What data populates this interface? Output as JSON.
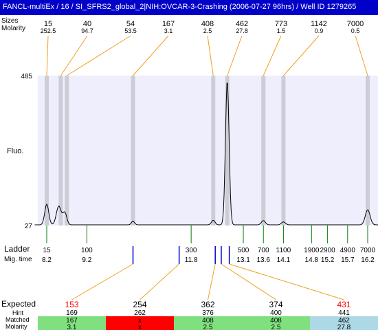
{
  "window": {
    "title": "FANCL-multiEx / 16 / SI_SFRS2_global_2|NIH:OVCAR-3-Crashing (2006-07-27 96hrs) / Well ID 1279265"
  },
  "colors": {
    "title_bar": "#0000c8",
    "plot_background": "#eeeefc",
    "peak_band": "#cdcdd7",
    "ladder_tick": "#008000",
    "sample_tick": "#0000cc",
    "connector": "#f0a020",
    "expected_highlight": "#ff0000",
    "cell_matched": "#80e080",
    "cell_failed": "#ff0000",
    "cell_extra": "#add8e6"
  },
  "labels": {
    "size_row": "Sizes",
    "molarity_row": "Molarity",
    "y_axis": "Fluo.",
    "ladder": "Ladder",
    "mig_time": "Mig. time",
    "expected": "Expected",
    "hint": "Hint",
    "matched": "Matched",
    "molarity": "Molarity"
  },
  "chart_data": {
    "type": "line",
    "title": "",
    "ylabel": "Fluo.",
    "y_ticks": [
      "485",
      "27"
    ],
    "ylim": [
      27,
      485
    ],
    "xlim": [
      7.9,
      16.5
    ],
    "x_quantity": "migration time",
    "peaks_top": [
      {
        "size": "15",
        "molarity": "252.5",
        "time": 8.2
      },
      {
        "size": "40",
        "molarity": "94.7",
        "time": 8.55
      },
      {
        "size": "54",
        "molarity": "53.5",
        "time": 8.7
      },
      {
        "size": "167",
        "molarity": "3.1",
        "time": 10.35
      },
      {
        "size": "408",
        "molarity": "2.5",
        "time": 12.35
      },
      {
        "size": "462",
        "molarity": "27.8",
        "time": 12.7
      },
      {
        "size": "773",
        "molarity": "1.5",
        "time": 13.6
      },
      {
        "size": "1142",
        "molarity": "0.9",
        "time": 14.1
      },
      {
        "size": "7000",
        "molarity": "0.5",
        "time": 16.2
      }
    ],
    "ladder": [
      {
        "size": "15",
        "time": "8.2"
      },
      {
        "size": "100",
        "time": "9.2"
      },
      {
        "size": "300",
        "time": "11.8"
      },
      {
        "size": "500",
        "time": "13.1"
      },
      {
        "size": "700",
        "time": "13.6"
      },
      {
        "size": "1100",
        "time": "14.1"
      },
      {
        "size": "1900",
        "time": "14.8"
      },
      {
        "size": "2900",
        "time": "15.2"
      },
      {
        "size": "4900",
        "time": "15.7"
      },
      {
        "size": "7000",
        "time": "16.2"
      }
    ],
    "trace_baseline": 29,
    "trace_peaks": [
      {
        "t": 8.2,
        "h": 92,
        "w": 0.05
      },
      {
        "t": 8.5,
        "h": 86,
        "w": 0.06
      },
      {
        "t": 8.65,
        "h": 66,
        "w": 0.05
      },
      {
        "t": 10.35,
        "h": 40,
        "w": 0.04
      },
      {
        "t": 12.35,
        "h": 43,
        "w": 0.045
      },
      {
        "t": 12.7,
        "h": 470,
        "w": 0.045
      },
      {
        "t": 13.6,
        "h": 42,
        "w": 0.05
      },
      {
        "t": 14.1,
        "h": 38,
        "w": 0.05
      },
      {
        "t": 16.2,
        "h": 75,
        "w": 0.06
      }
    ],
    "sample_ticks": [
      10.35,
      11.5,
      12.4,
      12.55,
      12.75
    ],
    "fragments": [
      {
        "expected": "153",
        "expected_color": "red",
        "hint": "169",
        "matched": "167",
        "molarity": "3.1",
        "status": "matched",
        "peak_index": 3
      },
      {
        "expected": "254",
        "expected_color": "black",
        "hint": "262",
        "matched": "x",
        "molarity": "x",
        "status": "failed",
        "peak_index": 3
      },
      {
        "expected": "362",
        "expected_color": "black",
        "hint": "376",
        "matched": "408",
        "molarity": "2.5",
        "status": "matched",
        "peak_index": 4
      },
      {
        "expected": "374",
        "expected_color": "black",
        "hint": "400",
        "matched": "408",
        "molarity": "2.5",
        "status": "matched",
        "peak_index": 4
      },
      {
        "expected": "431",
        "expected_color": "red",
        "hint": "441",
        "matched": "462",
        "molarity": "27.8",
        "status": "extra",
        "peak_index": 5
      }
    ]
  }
}
